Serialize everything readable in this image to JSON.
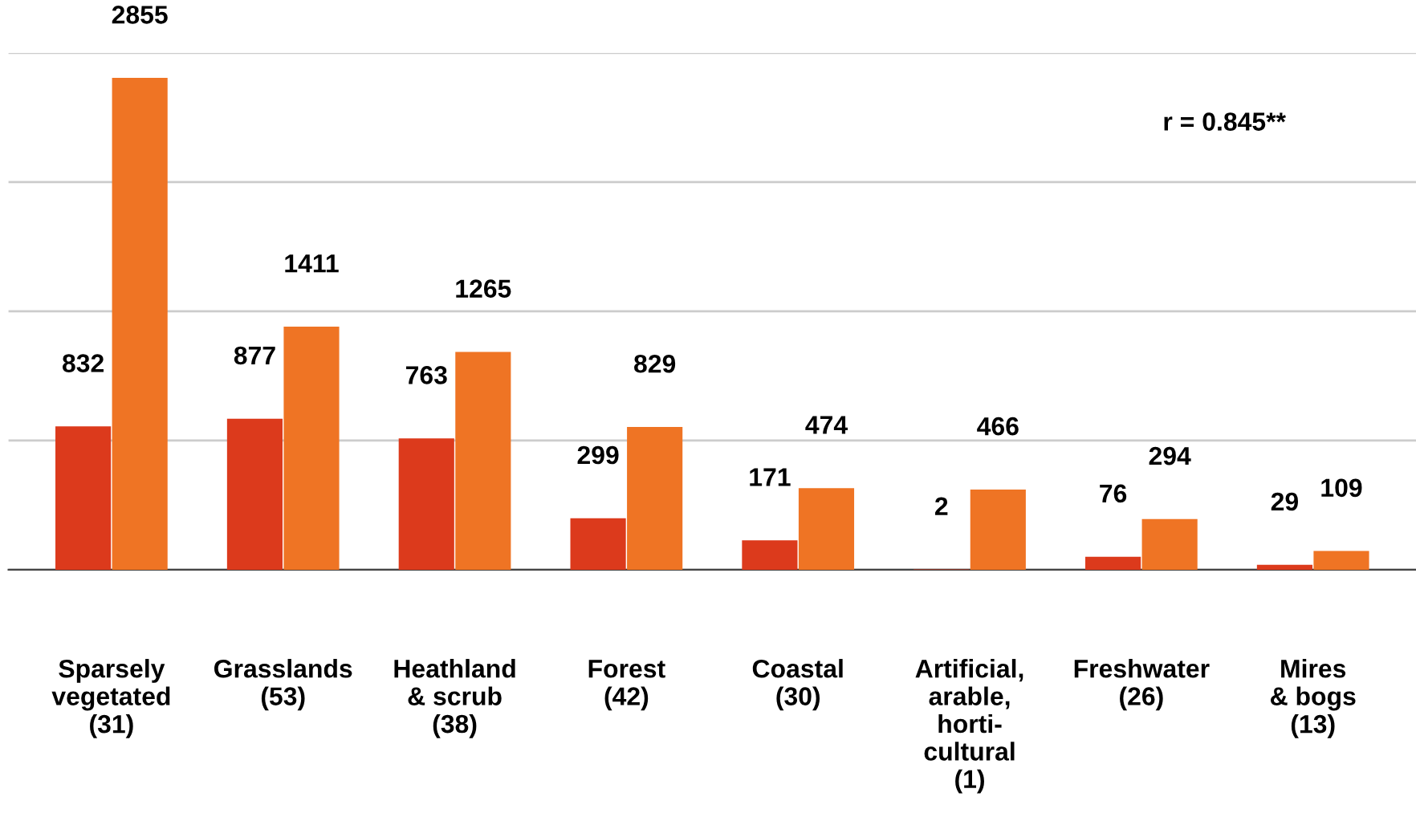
{
  "chart_data": {
    "type": "bar",
    "categories": [
      "Sparsely\nvegetated\n(31)",
      "Grasslands\n(53)",
      "Heathland\n& scrub\n(38)",
      "Forest\n(42)",
      "Coastal\n(30)",
      "Artificial,\narable,\nhorti-\ncultural\n(1)",
      "Freshwater\n(26)",
      "Mires\n& bogs\n(13)"
    ],
    "series": [
      {
        "color": "#dc3a1c",
        "values": [
          832,
          877,
          763,
          299,
          171,
          2,
          76,
          29
        ]
      },
      {
        "color": "#ef7424",
        "values": [
          2855,
          1411,
          1265,
          829,
          474,
          466,
          294,
          109
        ]
      }
    ],
    "ylim": [
      0,
      3000
    ],
    "yticks": [
      {
        "value": 0,
        "label": null
      },
      {
        "value": 750,
        "label": null
      },
      {
        "value": 1500,
        "label": null
      },
      {
        "value": 2250,
        "label": null
      },
      {
        "value": 3000,
        "label": null
      }
    ],
    "grid": "y",
    "data_labels": true,
    "legend": false,
    "tick_labels": "x",
    "annotations": [
      "r = 0.845**"
    ]
  }
}
